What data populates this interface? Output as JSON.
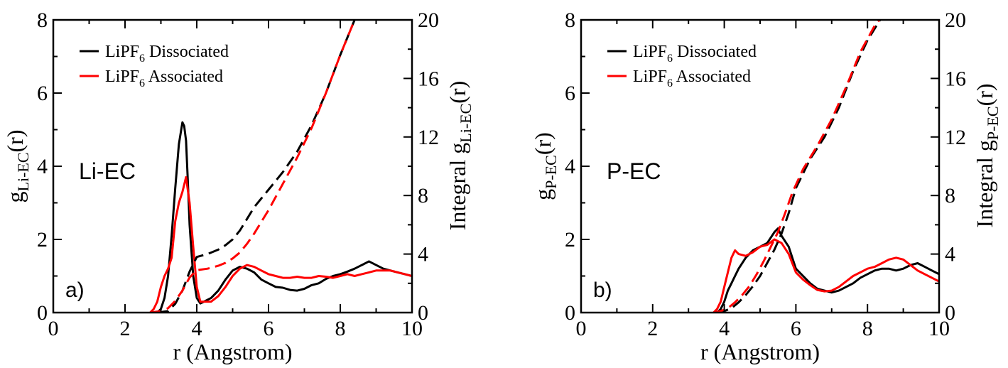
{
  "chart_data": [
    {
      "type": "line",
      "panel_id": "a)",
      "system_label": "Li-EC",
      "xlabel": "r (Angstrom)",
      "ylabel": {
        "base": "g",
        "sub": "Li-EC",
        "tail": "(r)"
      },
      "y2label": {
        "base": "Integral g",
        "sub": "Li-EC",
        "tail": "(r)"
      },
      "xlim": [
        0,
        10
      ],
      "ylim": [
        0,
        8
      ],
      "y2lim": [
        0,
        20
      ],
      "xticks": [
        "0",
        "2",
        "4",
        "6",
        "8",
        "10"
      ],
      "yticks": [
        "0",
        "2",
        "4",
        "6",
        "8"
      ],
      "y2ticks": [
        "0",
        "4",
        "8",
        "12",
        "16",
        "20"
      ],
      "legend": [
        {
          "prefix": "LiPF",
          "sub": "6",
          "suffix": " Dissociated",
          "color": "#000000"
        },
        {
          "prefix": "LiPF",
          "sub": "6",
          "suffix": " Associated",
          "color": "#ff0000"
        }
      ],
      "series": [
        {
          "name": "g(r) LiPF6 Dissociated",
          "axis": "left",
          "style": "solid",
          "color": "#000000",
          "x": [
            2.9,
            3.0,
            3.1,
            3.2,
            3.3,
            3.4,
            3.5,
            3.6,
            3.65,
            3.7,
            3.75,
            3.8,
            3.9,
            4.0,
            4.1,
            4.2,
            4.4,
            4.6,
            4.8,
            5.0,
            5.2,
            5.4,
            5.6,
            5.8,
            6.0,
            6.2,
            6.4,
            6.6,
            6.8,
            7.0,
            7.2,
            7.4,
            7.6,
            7.8,
            8.0,
            8.2,
            8.4,
            8.6,
            8.8,
            9.0,
            9.2,
            9.4,
            9.6,
            9.8,
            10.0
          ],
          "y": [
            0,
            0.1,
            0.4,
            1.0,
            2.1,
            3.4,
            4.6,
            5.2,
            5.1,
            4.7,
            3.6,
            2.4,
            1.0,
            0.4,
            0.25,
            0.3,
            0.4,
            0.6,
            0.9,
            1.15,
            1.25,
            1.2,
            1.1,
            0.9,
            0.8,
            0.7,
            0.68,
            0.62,
            0.6,
            0.65,
            0.75,
            0.8,
            0.92,
            1.0,
            1.05,
            1.12,
            1.2,
            1.3,
            1.4,
            1.3,
            1.2,
            1.15,
            1.1,
            1.05,
            1.0
          ]
        },
        {
          "name": "g(r) LiPF6 Associated",
          "axis": "left",
          "style": "solid",
          "color": "#ff0000",
          "x": [
            2.7,
            2.8,
            2.9,
            3.0,
            3.1,
            3.2,
            3.3,
            3.4,
            3.5,
            3.6,
            3.7,
            3.8,
            3.9,
            4.0,
            4.1,
            4.2,
            4.4,
            4.6,
            4.8,
            5.0,
            5.2,
            5.4,
            5.6,
            5.8,
            6.0,
            6.2,
            6.4,
            6.6,
            6.8,
            7.0,
            7.2,
            7.4,
            7.6,
            7.8,
            8.0,
            8.2,
            8.4,
            8.6,
            8.8,
            9.0,
            9.2,
            9.4,
            9.6,
            9.8,
            10.0
          ],
          "y": [
            0,
            0.1,
            0.3,
            0.7,
            1.0,
            1.2,
            1.5,
            2.5,
            3.0,
            3.3,
            3.7,
            3.0,
            1.8,
            0.7,
            0.3,
            0.3,
            0.3,
            0.45,
            0.7,
            1.0,
            1.2,
            1.3,
            1.25,
            1.15,
            1.05,
            1.0,
            0.95,
            0.95,
            0.98,
            0.95,
            0.95,
            1.0,
            0.98,
            0.95,
            1.0,
            1.05,
            1.0,
            1.05,
            1.1,
            1.15,
            1.15,
            1.15,
            1.1,
            1.05,
            1.0
          ]
        },
        {
          "name": "Integral LiPF6 Dissociated",
          "axis": "right",
          "style": "dashed",
          "color": "#000000",
          "x": [
            2.9,
            3.2,
            3.4,
            3.6,
            3.8,
            4.0,
            4.3,
            4.6,
            4.8,
            5.0,
            5.2,
            5.4,
            5.6,
            5.8,
            6.0,
            6.4,
            6.8,
            7.2,
            7.6,
            8.0,
            8.4
          ],
          "y": [
            0,
            0.1,
            0.6,
            1.5,
            2.8,
            3.8,
            4.0,
            4.3,
            4.6,
            5.0,
            5.6,
            6.4,
            7.2,
            7.8,
            8.4,
            9.6,
            11.0,
            12.8,
            15.0,
            17.6,
            20.0
          ]
        },
        {
          "name": "Integral LiPF6 Associated",
          "axis": "right",
          "style": "dashed",
          "color": "#ff0000",
          "x": [
            2.7,
            3.0,
            3.2,
            3.4,
            3.6,
            3.8,
            4.0,
            4.3,
            4.6,
            4.8,
            5.0,
            5.2,
            5.4,
            5.6,
            5.8,
            6.0,
            6.4,
            6.8,
            7.2,
            7.6,
            8.0,
            8.4
          ],
          "y": [
            0,
            0.1,
            0.3,
            0.8,
            1.5,
            2.4,
            2.9,
            3.0,
            3.2,
            3.4,
            3.7,
            4.1,
            4.7,
            5.4,
            6.2,
            7.0,
            8.8,
            10.6,
            12.6,
            15.0,
            17.6,
            20.0
          ]
        }
      ]
    },
    {
      "type": "line",
      "panel_id": "b)",
      "system_label": "P-EC",
      "xlabel": "r (Angstrom)",
      "ylabel": {
        "base": "g",
        "sub": "P-EC",
        "tail": "(r)"
      },
      "y2label": {
        "base": "Integral g",
        "sub": "P-EC",
        "tail": "(r)"
      },
      "xlim": [
        0,
        10
      ],
      "ylim": [
        0,
        8
      ],
      "y2lim": [
        0,
        20
      ],
      "xticks": [
        "0",
        "2",
        "4",
        "6",
        "8",
        "10"
      ],
      "yticks": [
        "0",
        "2",
        "4",
        "6",
        "8"
      ],
      "y2ticks": [
        "0",
        "4",
        "8",
        "12",
        "16",
        "20"
      ],
      "legend": [
        {
          "prefix": "LiPF",
          "sub": "6",
          "suffix": " Dissociated",
          "color": "#000000"
        },
        {
          "prefix": "LiPF",
          "sub": "6",
          "suffix": " Associated",
          "color": "#ff0000"
        }
      ],
      "series": [
        {
          "name": "g(r) LiPF6 Dissociated",
          "axis": "left",
          "style": "solid",
          "color": "#000000",
          "x": [
            3.8,
            3.9,
            4.0,
            4.1,
            4.2,
            4.3,
            4.4,
            4.6,
            4.8,
            5.0,
            5.2,
            5.4,
            5.5,
            5.6,
            5.8,
            6.0,
            6.2,
            6.4,
            6.6,
            6.8,
            7.0,
            7.2,
            7.4,
            7.6,
            7.8,
            8.0,
            8.2,
            8.4,
            8.6,
            8.8,
            9.0,
            9.2,
            9.4,
            9.6,
            9.8,
            10.0
          ],
          "y": [
            0,
            0.1,
            0.3,
            0.6,
            0.8,
            1.0,
            1.2,
            1.5,
            1.7,
            1.8,
            1.9,
            2.2,
            2.3,
            2.1,
            1.8,
            1.2,
            1.0,
            0.8,
            0.65,
            0.6,
            0.55,
            0.6,
            0.7,
            0.8,
            0.95,
            1.05,
            1.15,
            1.2,
            1.2,
            1.15,
            1.2,
            1.3,
            1.35,
            1.25,
            1.15,
            1.05
          ]
        },
        {
          "name": "g(r) LiPF6 Associated",
          "axis": "left",
          "style": "solid",
          "color": "#ff0000",
          "x": [
            3.7,
            3.8,
            3.9,
            4.0,
            4.1,
            4.2,
            4.3,
            4.4,
            4.6,
            4.8,
            5.0,
            5.2,
            5.4,
            5.6,
            5.8,
            6.0,
            6.2,
            6.4,
            6.6,
            6.8,
            7.0,
            7.2,
            7.4,
            7.6,
            7.8,
            8.0,
            8.2,
            8.4,
            8.6,
            8.8,
            9.0,
            9.2,
            9.4,
            9.6,
            9.8,
            10.0
          ],
          "y": [
            0,
            0.1,
            0.3,
            0.7,
            1.1,
            1.5,
            1.7,
            1.6,
            1.55,
            1.65,
            1.8,
            1.85,
            2.0,
            1.9,
            1.6,
            1.1,
            0.9,
            0.75,
            0.62,
            0.58,
            0.6,
            0.7,
            0.85,
            1.0,
            1.1,
            1.2,
            1.25,
            1.35,
            1.45,
            1.5,
            1.45,
            1.3,
            1.15,
            1.05,
            0.95,
            0.85
          ]
        },
        {
          "name": "Integral LiPF6 Dissociated",
          "axis": "right",
          "style": "dashed",
          "color": "#000000",
          "x": [
            3.8,
            4.0,
            4.2,
            4.4,
            4.6,
            4.8,
            5.0,
            5.2,
            5.4,
            5.6,
            5.8,
            6.0,
            6.4,
            6.8,
            7.2,
            7.6,
            8.0,
            8.4
          ],
          "y": [
            0,
            0.1,
            0.3,
            0.7,
            1.2,
            1.8,
            2.5,
            3.4,
            4.3,
            5.4,
            6.8,
            8.5,
            10.5,
            12.0,
            14.0,
            16.5,
            18.6,
            20.2
          ]
        },
        {
          "name": "Integral LiPF6 Associated",
          "axis": "right",
          "style": "dashed",
          "color": "#ff0000",
          "x": [
            3.7,
            3.9,
            4.1,
            4.3,
            4.5,
            4.7,
            4.9,
            5.1,
            5.3,
            5.5,
            5.7,
            5.9,
            6.2,
            6.6,
            7.0,
            7.4,
            7.8,
            8.2,
            8.4
          ],
          "y": [
            0,
            0.1,
            0.3,
            0.7,
            1.2,
            1.8,
            2.6,
            3.5,
            4.5,
            5.5,
            6.8,
            8.2,
            9.8,
            11.4,
            13.2,
            15.4,
            17.8,
            19.6,
            20.2
          ]
        }
      ]
    }
  ]
}
